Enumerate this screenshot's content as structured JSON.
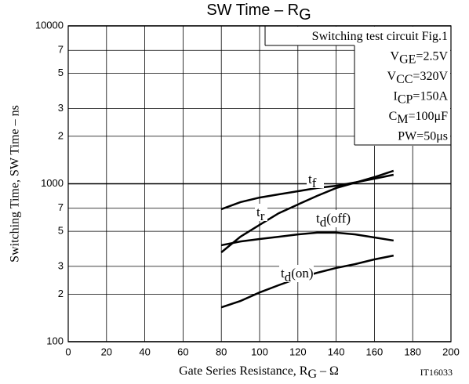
{
  "chart_data": {
    "type": "line",
    "title": {
      "main": "SW Time  –  R",
      "sub": "G"
    },
    "x_label": {
      "main": "Gate Series Resistance, R",
      "sub": "G",
      "rest": "  –  Ω"
    },
    "y_label": "Switching Time, SW Time  –  ns",
    "note": "IT16033",
    "conditions": [
      {
        "main": "Switching test circuit Fig.1"
      },
      {
        "main": "V",
        "sub": "GE",
        "rest": "=2.5V"
      },
      {
        "main": "V",
        "sub": "CC",
        "rest": "=320V"
      },
      {
        "main": "I",
        "sub": "CP",
        "rest": "=150A"
      },
      {
        "main": "C",
        "sub": "M",
        "rest": "=100μF"
      },
      {
        "main": "PW=50μs"
      }
    ],
    "x": [
      80,
      90,
      100,
      110,
      120,
      130,
      140,
      150,
      160,
      170
    ],
    "series": [
      {
        "label": {
          "main": "t",
          "sub": "f"
        },
        "color": "#000000",
        "values": [
          690,
          765,
          818,
          857,
          897,
          940,
          970,
          1020,
          1077,
          1140
        ]
      },
      {
        "label": {
          "main": "t",
          "sub": "r"
        },
        "color": "#000000",
        "values": [
          368,
          462,
          549,
          651,
          739,
          838,
          940,
          1017,
          1102,
          1208
        ]
      },
      {
        "label": {
          "main": "t",
          "sub": "d",
          "rest": "(off)"
        },
        "color": "#000000",
        "values": [
          408,
          431,
          447,
          462,
          478,
          490,
          490,
          478,
          457,
          437
        ]
      },
      {
        "label": {
          "main": "t",
          "sub": "d",
          "rest": "(on)"
        },
        "color": "#000000",
        "values": [
          165,
          181,
          205,
          228,
          252,
          273,
          293,
          310,
          332,
          351
        ]
      }
    ],
    "xlim": [
      0,
      200
    ],
    "xticks": [
      0,
      20,
      40,
      60,
      80,
      100,
      120,
      140,
      160,
      180,
      200
    ],
    "ylim": [
      100,
      10000
    ],
    "log_y": true,
    "yticks": [
      100,
      {
        "value": 200,
        "label": "2"
      },
      {
        "value": 300,
        "label": "3"
      },
      {
        "value": 500,
        "label": "5"
      },
      {
        "value": 700,
        "label": "7"
      },
      1000,
      {
        "value": 2000,
        "label": "2"
      },
      {
        "value": 3000,
        "label": "3"
      },
      {
        "value": 5000,
        "label": "5"
      },
      {
        "value": 7000,
        "label": "7"
      },
      10000
    ],
    "grid": true
  }
}
